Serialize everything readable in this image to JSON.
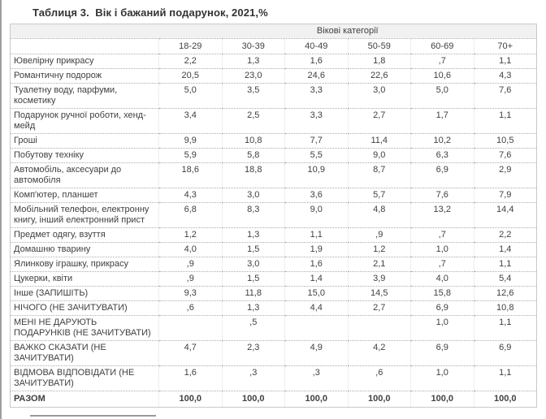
{
  "page": {
    "title": "Таблиця 3.  Вік і бажаний подарунок, 2021,%"
  },
  "table": {
    "group_header": "Вікові категорії",
    "columns": [
      "18-29",
      "30-39",
      "40-49",
      "50-59",
      "60-69",
      "70+"
    ],
    "rows": [
      {
        "label": "Ювелірну прикрасу",
        "values": [
          "2,2",
          "1,3",
          "1,6",
          "1,8",
          ",7",
          "1,1"
        ]
      },
      {
        "label": "Романтичну подорож",
        "values": [
          "20,5",
          "23,0",
          "24,6",
          "22,6",
          "10,6",
          "4,3"
        ]
      },
      {
        "label": "Туалетну воду, парфуми, косметику",
        "values": [
          "5,0",
          "3,5",
          "3,3",
          "3,0",
          "5,0",
          "7,6"
        ]
      },
      {
        "label": "Подарунок ручної роботи, хенд-мейд",
        "values": [
          "3,4",
          "2,5",
          "3,3",
          "2,7",
          "1,7",
          "1,1"
        ]
      },
      {
        "label": "Гроші",
        "values": [
          "9,9",
          "10,8",
          "7,7",
          "11,4",
          "10,2",
          "10,5"
        ]
      },
      {
        "label": "Побутову техніку",
        "values": [
          "5,9",
          "5,8",
          "5,5",
          "9,0",
          "6,3",
          "7,6"
        ]
      },
      {
        "label": "Автомобіль, аксесуари до автомобіля",
        "values": [
          "18,6",
          "18,8",
          "10,9",
          "8,7",
          "6,9",
          "2,9"
        ]
      },
      {
        "label": "Комп'ютер, планшет",
        "values": [
          "4,3",
          "3,0",
          "3,6",
          "5,7",
          "7,6",
          "7,9"
        ]
      },
      {
        "label": "Мобільний телефон, електронну книгу, інший електронний прист",
        "values": [
          "6,8",
          "8,3",
          "9,0",
          "4,8",
          "13,2",
          "14,4"
        ]
      },
      {
        "label": "Предмет одягу, взуття",
        "values": [
          "1,2",
          "1,3",
          "1,1",
          ",9",
          ",7",
          "2,2"
        ]
      },
      {
        "label": "Домашню тварину",
        "values": [
          "4,0",
          "1,5",
          "1,9",
          "1,2",
          "1,0",
          "1,4"
        ]
      },
      {
        "label": "Ялинкову іграшку, прикрасу",
        "values": [
          ",9",
          "3,0",
          "1,6",
          "2,1",
          ",7",
          "1,1"
        ]
      },
      {
        "label": "Цукерки, квіти",
        "values": [
          ",9",
          "1,5",
          "1,4",
          "3,9",
          "4,0",
          "5,4"
        ]
      },
      {
        "label": "Інше (ЗАПИШІТЬ)",
        "values": [
          "9,3",
          "11,8",
          "15,0",
          "14,5",
          "15,8",
          "12,6"
        ]
      },
      {
        "label": "НІЧОГО (НЕ ЗАЧИТУВАТИ)",
        "values": [
          ",6",
          "1,3",
          "4,4",
          "2,7",
          "6,9",
          "10,8"
        ]
      },
      {
        "label": "МЕНІ НЕ ДАРУЮТЬ ПОДАРУНКІВ (НЕ ЗАЧИТУВАТИ)",
        "values": [
          "",
          ",5",
          "",
          "",
          "1,0",
          "1,1"
        ]
      },
      {
        "label": "ВАЖКО СКАЗАТИ (НЕ ЗАЧИТУВАТИ)",
        "values": [
          "4,7",
          "2,3",
          "4,9",
          "4,2",
          "6,9",
          "6,9"
        ]
      },
      {
        "label": "ВІДМОВА ВІДПОВІДАТИ (НЕ ЗАЧИТУВАТИ)",
        "values": [
          "1,6",
          ",3",
          ",3",
          ",6",
          "1,0",
          "1,1"
        ]
      },
      {
        "label": "РАЗОМ",
        "values": [
          "100,0",
          "100,0",
          "100,0",
          "100,0",
          "100,0",
          "100,0"
        ],
        "total": true
      }
    ]
  },
  "colors": {
    "header_band": "#f1f1f1",
    "table_border": "#c9c9c9",
    "dotted_grid": "#adadad",
    "text": "#404040",
    "title_text": "#333333",
    "page_left_edge": "#9e9e9e",
    "bottom_divider": "#999999"
  }
}
